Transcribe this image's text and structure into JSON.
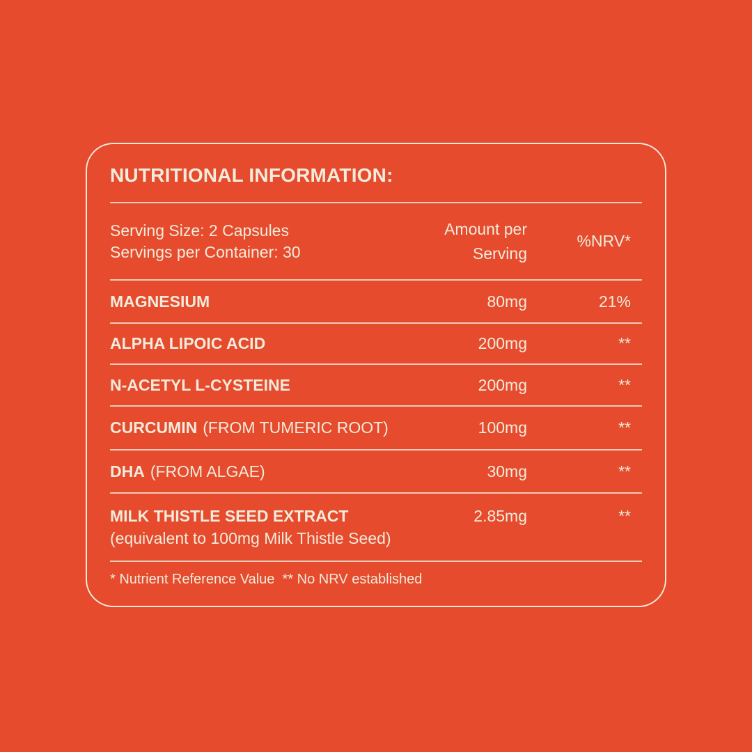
{
  "colors": {
    "background": "#E54B2C",
    "text": "#F3EBDC",
    "rule": "#F0DEC6",
    "panel_border": "#F6F0E5"
  },
  "panel": {
    "title": "NUTRITIONAL INFORMATION:",
    "serving": {
      "size": "Serving Size: 2 Capsules",
      "per_container": "Servings per Container: 30"
    },
    "columns": {
      "amount_line1": "Amount per",
      "amount_line2": "Serving",
      "nrv": "%NRV*"
    },
    "rows": [
      {
        "name": "MAGNESIUM",
        "note": "",
        "amount": "80mg",
        "nrv": "21%"
      },
      {
        "name": "ALPHA LIPOIC ACID",
        "note": "",
        "amount": "200mg",
        "nrv": "**"
      },
      {
        "name": "N-ACETYL L-CYSTEINE",
        "note": "",
        "amount": "200mg",
        "nrv": "**"
      },
      {
        "name": "CURCUMIN",
        "note": "(FROM TUMERIC ROOT)",
        "amount": "100mg",
        "nrv": "**"
      },
      {
        "name": "DHA",
        "note": "(FROM ALGAE)",
        "amount": "30mg",
        "nrv": "**"
      },
      {
        "name": "MILK THISTLE SEED EXTRACT",
        "note": "",
        "subline": "(equivalent to 100mg Milk Thistle Seed)",
        "amount": "2.85mg",
        "nrv": "**"
      }
    ],
    "footnote": "* Nutrient Reference Value  ** No NRV established"
  }
}
